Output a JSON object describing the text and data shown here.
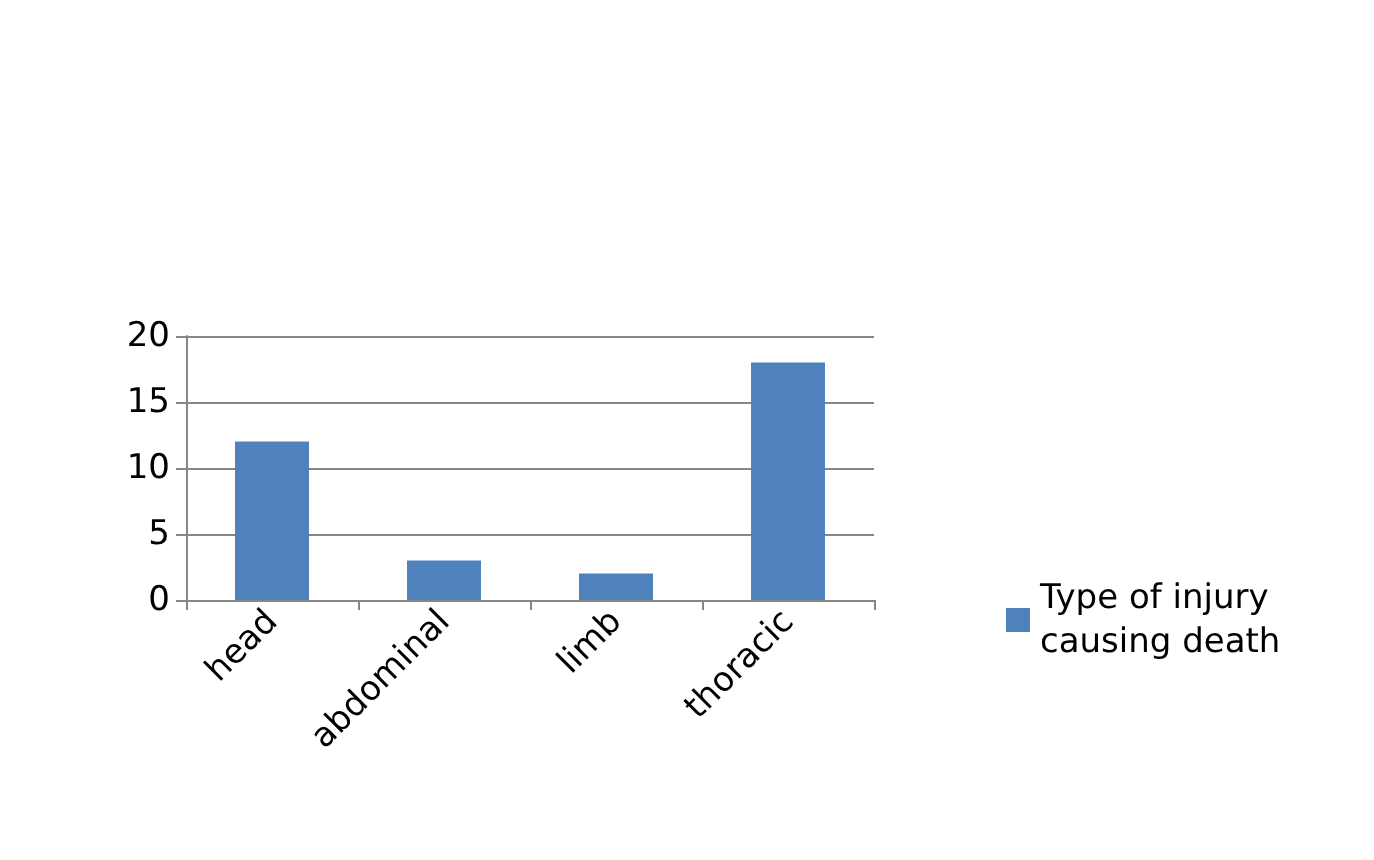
{
  "chart_data": {
    "type": "bar",
    "categories": [
      "head",
      "abdominal",
      "limb",
      "thoracic"
    ],
    "series": [
      {
        "name": "Type of injury causing death",
        "color": "#4f81bd",
        "values": [
          12,
          3,
          2,
          18
        ]
      }
    ],
    "ylim": [
      0,
      20
    ],
    "yticks": [
      0,
      5,
      10,
      15,
      20
    ],
    "grid": "y",
    "legend": "right"
  }
}
